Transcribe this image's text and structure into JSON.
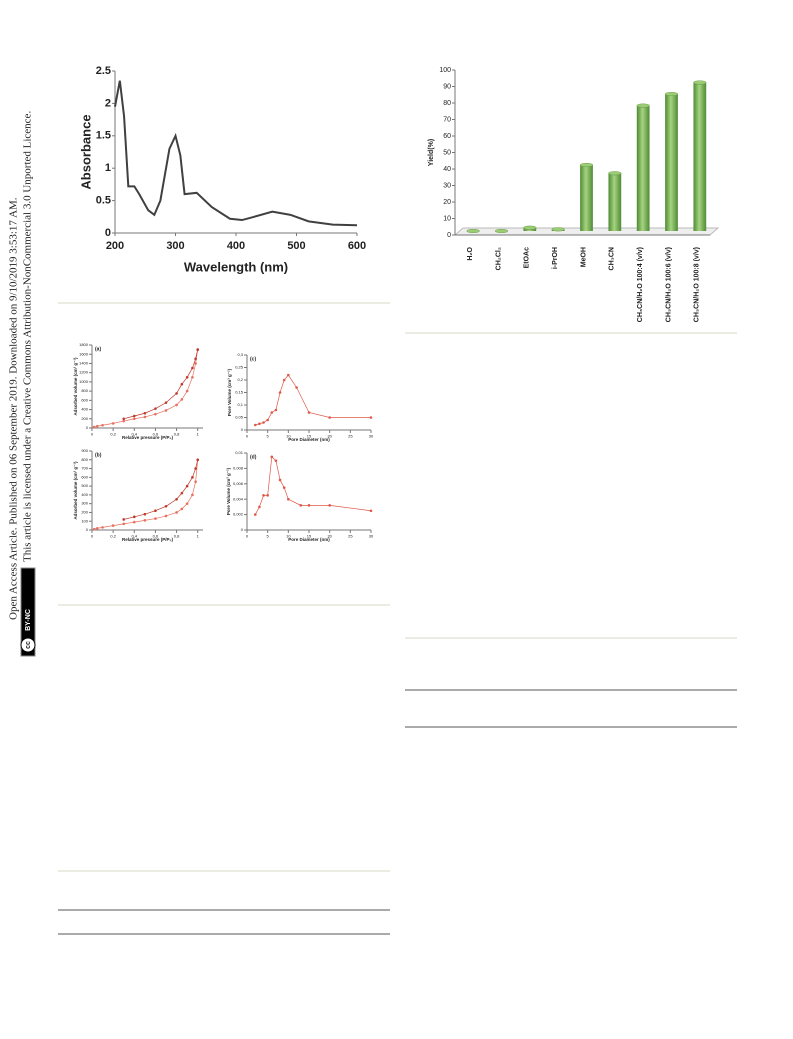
{
  "side_notice": {
    "line1": "Open Access Article. Published on 06 September 2019. Downloaded on 9/10/2019 3:53:17 AM.",
    "line2": "This article is licensed under a Creative Commons Attribution-NonCommercial 3.0 Unported Licence.",
    "badge_cc": "cc",
    "badge_text": "BY-NC"
  },
  "chart_data": [
    {
      "type": "line",
      "xlabel": "Wavelength (nm)",
      "ylabel": "Absorbance",
      "xlim": [
        200,
        600
      ],
      "xticks": [
        200,
        300,
        400,
        500,
        600
      ],
      "ylim": [
        0,
        2.5
      ],
      "yticks": [
        0,
        0.5,
        1,
        1.5,
        2,
        2.5
      ],
      "x": [
        200,
        208,
        215,
        222,
        232,
        240,
        255,
        265,
        275,
        290,
        300,
        308,
        315,
        335,
        360,
        390,
        410,
        430,
        460,
        490,
        520,
        560,
        600
      ],
      "series": [
        {
          "color": "#404040",
          "values": [
            1.95,
            2.35,
            1.8,
            0.72,
            0.72,
            0.6,
            0.35,
            0.28,
            0.5,
            1.3,
            1.5,
            1.2,
            0.6,
            0.62,
            0.4,
            0.22,
            0.2,
            0.25,
            0.33,
            0.28,
            0.18,
            0.13,
            0.12
          ]
        }
      ],
      "markers": false
    },
    {
      "type": "bar",
      "ylabel": "Yield(%)",
      "categories": [
        "H₂O",
        "CH₂Cl₂",
        "EtOAc",
        "i-PrOH",
        "MeOH",
        "CH₃CN",
        "CH₃CN/H₂O 100:4 (v/v)",
        "CH₃CN/H₂O 100:6 (v/v)",
        "CH₃CN/H₂O 100:8 (v/v)"
      ],
      "values": [
        0,
        0,
        2,
        1,
        40,
        35,
        76,
        83,
        90
      ],
      "color": "#6aa84f",
      "ylim": [
        0,
        100
      ],
      "yticks": [
        0,
        10,
        20,
        30,
        40,
        50,
        60,
        70,
        80,
        90,
        100
      ]
    },
    {
      "type": "line",
      "label": "(a)",
      "xlabel": "Relative pressure (P/P₀)",
      "ylabel": "Adsorbed volume (cm³ g⁻¹)",
      "xlim": [
        0,
        1.05
      ],
      "xticks": [
        0,
        {
          "value": 0.2,
          "label": "0,2"
        },
        {
          "value": 0.4,
          "label": "0,4"
        },
        {
          "value": 0.6,
          "label": "0,6"
        },
        {
          "value": 0.8,
          "label": "0,8"
        },
        1
      ],
      "ylim": [
        0,
        1800
      ],
      "yticks": [
        0,
        200,
        400,
        600,
        800,
        1000,
        1200,
        1400,
        1600,
        1800
      ],
      "series": [
        {
          "color": "#e8705f",
          "x": [
            0.02,
            0.05,
            0.1,
            0.2,
            0.3,
            0.4,
            0.5,
            0.6,
            0.7,
            0.8,
            0.85,
            0.9,
            0.95,
            0.98,
            1.0
          ],
          "values": [
            20,
            40,
            60,
            100,
            150,
            200,
            240,
            300,
            380,
            500,
            620,
            800,
            1100,
            1400,
            1700
          ]
        },
        {
          "color": "#c0392b",
          "x": [
            1.0,
            0.98,
            0.95,
            0.9,
            0.85,
            0.8,
            0.7,
            0.6,
            0.5,
            0.4,
            0.3
          ],
          "values": [
            1700,
            1500,
            1300,
            1100,
            950,
            750,
            550,
            420,
            320,
            260,
            200
          ]
        }
      ],
      "markers": true
    },
    {
      "type": "line",
      "label": "(c)",
      "xlabel": "Pore Diameter (nm)",
      "ylabel": "Pore Volume (cm³ g⁻¹)",
      "xlim": [
        0,
        30
      ],
      "xticks": [
        0,
        5,
        10,
        15,
        20,
        25,
        30
      ],
      "ylim": [
        0,
        0.3
      ],
      "yticks": [
        0,
        {
          "value": 0.05,
          "label": "0,05"
        },
        {
          "value": 0.1,
          "label": "0,1"
        },
        {
          "value": 0.15,
          "label": "0,15"
        },
        {
          "value": 0.2,
          "label": "0,2"
        },
        {
          "value": 0.25,
          "label": "0,25"
        },
        {
          "value": 0.3,
          "label": "0,3"
        }
      ],
      "series": [
        {
          "color": "#e0584a",
          "x": [
            2,
            3,
            4,
            5,
            6,
            7,
            8,
            9,
            10,
            12,
            15,
            20,
            30
          ],
          "values": [
            0.02,
            0.025,
            0.03,
            0.04,
            0.07,
            0.08,
            0.15,
            0.2,
            0.22,
            0.17,
            0.07,
            0.05,
            0.05
          ]
        }
      ],
      "markers": true
    },
    {
      "type": "line",
      "label": "(b)",
      "xlabel": "Relative pressure (P/P₀)",
      "ylabel": "Adsorbed volume (cm³ g⁻¹)",
      "xlim": [
        0,
        1.05
      ],
      "xticks": [
        0,
        {
          "value": 0.2,
          "label": "0,2"
        },
        {
          "value": 0.4,
          "label": "0,4"
        },
        {
          "value": 0.6,
          "label": "0,6"
        },
        {
          "value": 0.8,
          "label": "0,8"
        },
        1
      ],
      "ylim": [
        0,
        900
      ],
      "yticks": [
        0,
        100,
        200,
        300,
        400,
        500,
        600,
        700,
        800,
        900
      ],
      "series": [
        {
          "color": "#e8705f",
          "x": [
            0.02,
            0.05,
            0.1,
            0.2,
            0.3,
            0.4,
            0.5,
            0.6,
            0.7,
            0.8,
            0.85,
            0.9,
            0.95,
            0.98,
            1.0
          ],
          "values": [
            10,
            20,
            30,
            50,
            70,
            90,
            110,
            130,
            160,
            200,
            240,
            300,
            400,
            550,
            800
          ]
        },
        {
          "color": "#c0392b",
          "x": [
            1.0,
            0.98,
            0.95,
            0.9,
            0.85,
            0.8,
            0.7,
            0.6,
            0.5,
            0.4,
            0.3
          ],
          "values": [
            800,
            700,
            600,
            500,
            420,
            350,
            270,
            220,
            180,
            150,
            120
          ]
        }
      ],
      "markers": true
    },
    {
      "type": "line",
      "label": "(d)",
      "xlabel": "Pore Diameter (nm)",
      "ylabel": "Pore Volume (cm³ g⁻¹)",
      "xlim": [
        0,
        30
      ],
      "xticks": [
        0,
        5,
        10,
        15,
        20,
        25,
        30
      ],
      "ylim": [
        0,
        0.01
      ],
      "yticks": [
        0,
        {
          "value": 0.002,
          "label": "0,002"
        },
        {
          "value": 0.004,
          "label": "0,004"
        },
        {
          "value": 0.006,
          "label": "0,006"
        },
        {
          "value": 0.008,
          "label": "0,008"
        },
        {
          "value": 0.01,
          "label": "0,01"
        }
      ],
      "series": [
        {
          "color": "#e0584a",
          "x": [
            2,
            3,
            4,
            5,
            6,
            7,
            8,
            9,
            10,
            13,
            15,
            20,
            30
          ],
          "values": [
            0.002,
            0.003,
            0.0045,
            0.0045,
            0.0095,
            0.009,
            0.0065,
            0.0055,
            0.004,
            0.0032,
            0.0032,
            0.0032,
            0.0025
          ]
        }
      ],
      "markers": true
    }
  ]
}
